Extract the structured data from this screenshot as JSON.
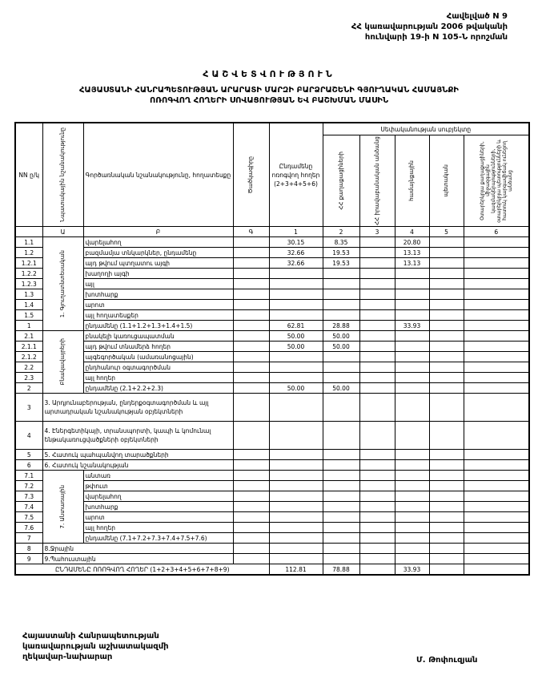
{
  "annex": {
    "line1": "Հավելված N 9",
    "line2": "ՀՀ կառավարության 2006 թվականի",
    "line3": "հունվարի 19-ի N 105-Ն որոշման"
  },
  "title": "ՀԱՇՎԵՏՎՈՒԹՅՈՒՆ",
  "subtitle1": "ՀԱՅԱՍՏԱՆԻ ՀԱՆՐԱՊԵՏՈՒԹՅԱՆ ԱՐԱՐԱՏԻ ՄԱՐԶԻ ԲԱՐՁՐԱՇԵՆԻ ԳՅՈՒՂԱԿԱՆ ՀԱՄԱՅՆՔԻ",
  "subtitle2": "ՈՌՈԳՎՈՂ ՀՈՂԵՐԻ ՍՈՎԱՑՈՒԹՅԱՆ ԵՎ ԲԱՇԽՄԱՆ ՄԱՍԻՆ",
  "headers": {
    "nn": "NN ը/կ",
    "purpose": "Նպատակային նշանակությունը",
    "function": "Գործառնական նշանակությունը, հողատեսքը",
    "code": "Ծածկագիրը",
    "total": "Ընդամենը ոռոգվող հողեր (2+3+4+5+6)",
    "owners": "Սեփականության սուբյեկտը",
    "c2": "ՀՀ քաղաքացիների",
    "c3": "ՀՀ իրավաբանական անձանց",
    "c4": "համայնքային",
    "c5": "պետական",
    "c6": "Օտարերկրյա քաղաքացիների, միջազգային կազմակերպությունների, օտարերկրյա պետությունների և հատուկ կարգավիճակ ունեցող անձանց",
    "idx": [
      "Ա",
      "Բ",
      "Գ",
      "1",
      "2",
      "3",
      "4",
      "5",
      "6"
    ]
  },
  "groups": {
    "g1": "1. Գյուղատնտեսական",
    "g2": "Բնակավայրերի",
    "g7": "7. Անտառային"
  },
  "rows": [
    {
      "nn": "1.1",
      "name": "վարելահող",
      "total": "30.15",
      "c2": "8.35",
      "c4": "20.80"
    },
    {
      "nn": "1.2",
      "name": "բազմամյա տնկարկներ, ընդամենը",
      "total": "32.66",
      "c2": "19.53",
      "c4": "13.13"
    },
    {
      "nn": "1.2.1",
      "name": "այդ թվում   պտղատու այգի",
      "total": "32.66",
      "c2": "19.53",
      "c4": "13.13"
    },
    {
      "nn": "1.2.2",
      "name": "             խաղողի այգի"
    },
    {
      "nn": "1.2.3",
      "name": "այլ"
    },
    {
      "nn": "1.3",
      "name": "խոտհարք"
    },
    {
      "nn": "1.4",
      "name": "արոտ"
    },
    {
      "nn": "1.5",
      "name": "այլ հողատեսքեր"
    },
    {
      "nn": "1",
      "name": "ընդամենը (1.1+1.2+1.3+1.4+1.5)",
      "total": "62.81",
      "c2": "28.88",
      "c4": "33.93"
    },
    {
      "nn": "2.1",
      "name": "բնակելի կառուցապատման",
      "total": "50.00",
      "c2": "50.00"
    },
    {
      "nn": "2.1.1",
      "name": "այդ թվում տնամերձ հողեր",
      "total": "50.00",
      "c2": "50.00"
    },
    {
      "nn": "2.1.2",
      "name": "այգեգործական (ամառանոցային)"
    },
    {
      "nn": "2.2",
      "name": "ընդհանուր օգտագործման"
    },
    {
      "nn": "2.3",
      "name": "այլ հողեր"
    },
    {
      "nn": "2",
      "name": "ընդամենը (2.1+2.2+2.3)",
      "total": "50.00",
      "c2": "50.00"
    },
    {
      "nn": "3",
      "name": "3. Արդյունաբերության, ընդերքօգտագործման և այլ արտադրական նշանակության օբյեկտների"
    },
    {
      "nn": "4",
      "name": "4. Էներգետիկայի, տրանսպորտի, կապի և կոմունալ ենթակառուցվածքների օբյեկտների"
    },
    {
      "nn": "5",
      "name": "5. Հատուկ պահպանվող տարածքների"
    },
    {
      "nn": "6",
      "name": "6. Հատուկ նշանակության"
    },
    {
      "nn": "7.1",
      "name": "անտառ"
    },
    {
      "nn": "7.2",
      "name": "թփուտ"
    },
    {
      "nn": "7.3",
      "name": "վարելահող"
    },
    {
      "nn": "7.4",
      "name": "խոտհարք"
    },
    {
      "nn": "7.5",
      "name": "արոտ"
    },
    {
      "nn": "7.6",
      "name": "այլ հողեր"
    },
    {
      "nn": "7",
      "name": "ընդամենը (7.1+7.2+7.3+7.4+7.5+7.6)"
    },
    {
      "nn": "8",
      "name": "8.Ջրային"
    },
    {
      "nn": "9",
      "name": "9.Պահուստային"
    }
  ],
  "grand_total": {
    "name": "ԸՆԴԱՄԵՆԸ ՈՌՈԳՎՈՂ ՀՈՂԵՐ (1+2+3+4+5+6+7+8+9)",
    "total": "112.81",
    "c2": "78.88",
    "c4": "33.93"
  },
  "footer": {
    "l1": "Հայաստանի Հանրապետության",
    "l2": "կառավարության աշխատակազմի",
    "l3": "ղեկավար-նախարար",
    "signer": "Մ. Թոփուզյան"
  }
}
